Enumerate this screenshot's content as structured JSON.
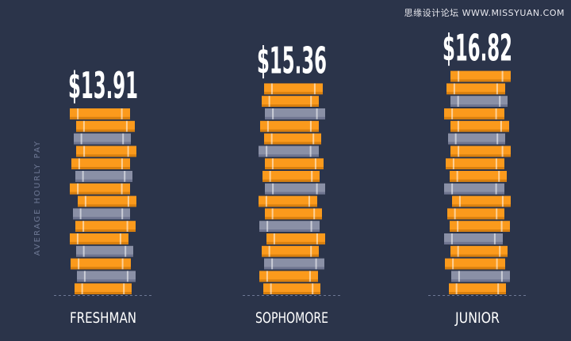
{
  "watermark": "思缘设计论坛 WWW.MISSYUAN.COM",
  "chart_data": {
    "type": "bar",
    "style": "stacked-coins",
    "categories": [
      "FRESHMAN",
      "SOPHOMORE",
      "JUNIOR"
    ],
    "values": [
      13.91,
      15.36,
      16.82
    ],
    "value_labels": [
      "$13.91",
      "$15.36",
      "$16.82"
    ],
    "title": "",
    "xlabel": "",
    "ylabel": "AVERAGE HOURLY PAY",
    "coin_counts": [
      15,
      17,
      18
    ],
    "grid": false,
    "legend": "none"
  },
  "colors": {
    "background": "#2b344a",
    "coin_orange": "#fb9a1c",
    "coin_orange_edge": "#d9800f",
    "coin_gray": "#8a90a6",
    "coin_gray_edge": "#6f7590",
    "text": "#ffffff",
    "ylabel": "#6e7894",
    "baseline": "#6e7894"
  }
}
